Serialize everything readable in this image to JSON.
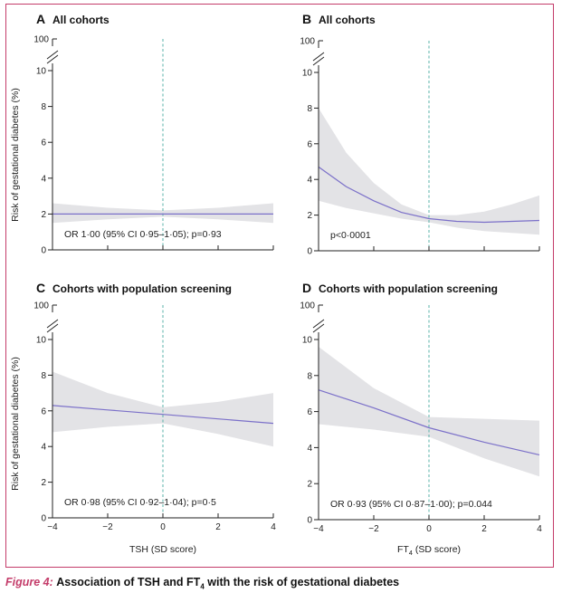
{
  "caption": {
    "label": "Figure 4:",
    "text_before": "Association of TSH and FT",
    "sub": "4",
    "text_after": " with the risk of gestational diabetes"
  },
  "colors": {
    "frame": "#c43c6a",
    "band": "#e3e3e6",
    "line": "#7b70c9",
    "ref_line": "#5ab3aa"
  },
  "shared": {
    "ylabel": "Risk of gestational diabetes (%)",
    "xlabel_tsh": "TSH (SD score)",
    "xlabel_ft4_main": "FT",
    "xlabel_ft4_sub": "4",
    "xlabel_ft4_rest": " (SD score)"
  },
  "chart_data": [
    {
      "type": "line",
      "panel": "A",
      "title": "All cohorts",
      "annotation": "OR 1·00 (95% CI 0·95–1·05); p=0·93",
      "x_axis": "TSH (SD score)",
      "xlim": [
        -4,
        4
      ],
      "ylim": [
        0,
        10
      ],
      "y_top_label": "100",
      "yticks": [
        0,
        2,
        4,
        6,
        8,
        10
      ],
      "xticks": [
        -4,
        -2,
        0,
        2,
        4
      ],
      "xtick_labels_shown": false,
      "reference_x": 0,
      "series": [
        {
          "x": [
            -4,
            -2,
            0,
            2,
            4
          ],
          "y": [
            2.0,
            2.0,
            2.0,
            2.0,
            2.0
          ],
          "lower": [
            1.5,
            1.7,
            1.85,
            1.7,
            1.5
          ],
          "upper": [
            2.6,
            2.35,
            2.2,
            2.35,
            2.6
          ]
        }
      ]
    },
    {
      "type": "line",
      "panel": "B",
      "title": "All cohorts",
      "annotation": "p<0·0001",
      "x_axis": "FT4 (SD score)",
      "xlim": [
        -4,
        4
      ],
      "ylim": [
        0,
        10
      ],
      "y_top_label": "100",
      "yticks": [
        0,
        2,
        4,
        6,
        8,
        10
      ],
      "xticks": [
        -4,
        -2,
        0,
        2,
        4
      ],
      "xtick_labels_shown": false,
      "reference_x": 0,
      "series": [
        {
          "x": [
            -4,
            -3,
            -2,
            -1,
            0,
            1,
            2,
            3,
            4
          ],
          "y": [
            4.7,
            3.6,
            2.8,
            2.15,
            1.8,
            1.65,
            1.6,
            1.65,
            1.7
          ],
          "lower": [
            2.8,
            2.4,
            2.1,
            1.8,
            1.6,
            1.3,
            1.1,
            1.0,
            0.9
          ],
          "upper": [
            8.0,
            5.5,
            3.8,
            2.6,
            2.0,
            2.0,
            2.2,
            2.6,
            3.1
          ]
        }
      ]
    },
    {
      "type": "line",
      "panel": "C",
      "title": "Cohorts with population screening",
      "annotation": "OR 0·98 (95% CI 0·92–1·04); p=0·5",
      "x_axis": "TSH (SD score)",
      "xlim": [
        -4,
        4
      ],
      "ylim": [
        0,
        10
      ],
      "y_top_label": "100",
      "yticks": [
        0,
        2,
        4,
        6,
        8,
        10
      ],
      "xticks": [
        -4,
        -2,
        0,
        2,
        4
      ],
      "xtick_labels_shown": true,
      "reference_x": 0,
      "series": [
        {
          "x": [
            -4,
            -2,
            0,
            2,
            4
          ],
          "y": [
            6.3,
            6.05,
            5.8,
            5.55,
            5.3
          ],
          "lower": [
            4.8,
            5.1,
            5.3,
            4.7,
            4.0
          ],
          "upper": [
            8.2,
            7.0,
            6.2,
            6.5,
            7.0
          ]
        }
      ]
    },
    {
      "type": "line",
      "panel": "D",
      "title": "Cohorts with population screening",
      "annotation": "OR 0·93 (95% CI 0·87–1·00); p=0.044",
      "x_axis": "FT4 (SD score)",
      "xlim": [
        -4,
        4
      ],
      "ylim": [
        0,
        10
      ],
      "y_top_label": "100",
      "yticks": [
        0,
        2,
        4,
        6,
        8,
        10
      ],
      "xticks": [
        -4,
        -2,
        0,
        2,
        4
      ],
      "xtick_labels_shown": true,
      "reference_x": 0,
      "series": [
        {
          "x": [
            -4,
            -2,
            0,
            2,
            4
          ],
          "y": [
            7.2,
            6.2,
            5.1,
            4.3,
            3.6
          ],
          "lower": [
            5.3,
            5.0,
            4.6,
            3.4,
            2.4
          ],
          "upper": [
            9.6,
            7.3,
            5.7,
            5.6,
            5.5
          ]
        }
      ]
    }
  ]
}
